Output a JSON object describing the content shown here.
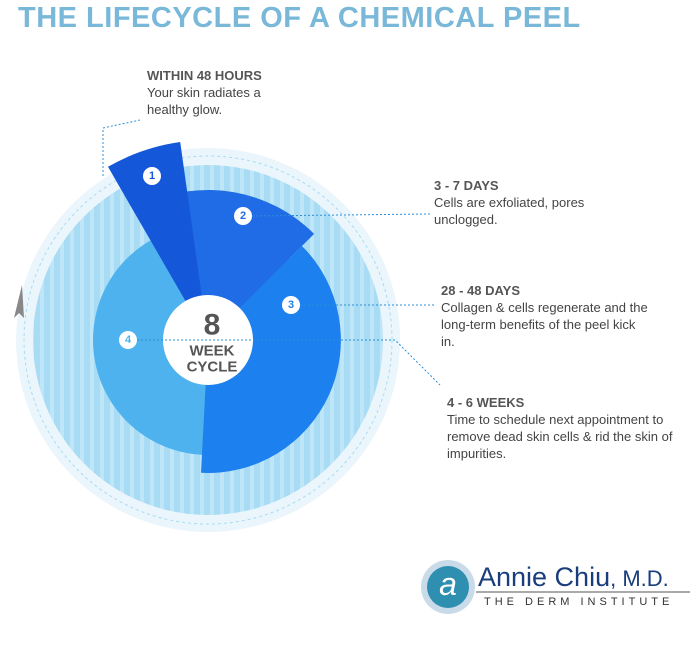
{
  "title": "THE LIFECYCLE OF A CHEMICAL PEEL",
  "center": {
    "number": 8,
    "line1": "WEEK",
    "line2": "CYCLE"
  },
  "stages": [
    {
      "number": 1,
      "heading": "WITHIN 48 HOURS",
      "text": "Your skin radiates a healthy glow."
    },
    {
      "number": 2,
      "heading": "3 - 7 DAYS",
      "text": "Cells are exfoliated, pores unclogged."
    },
    {
      "number": 3,
      "heading": "28 - 48 DAYS",
      "text": "Collagen & cells regenerate and the long-term benefits of the peel kick in."
    },
    {
      "number": 4,
      "heading": "4 - 6 WEEKS",
      "text": "Time to schedule next appointment to remove dead skin cells & rid the skin of impurities."
    }
  ],
  "logo": {
    "mark": "a",
    "name": "Annie Chiu",
    "suffix": ", M.D.",
    "tagline": "THE DERM INSTITUTE"
  }
}
